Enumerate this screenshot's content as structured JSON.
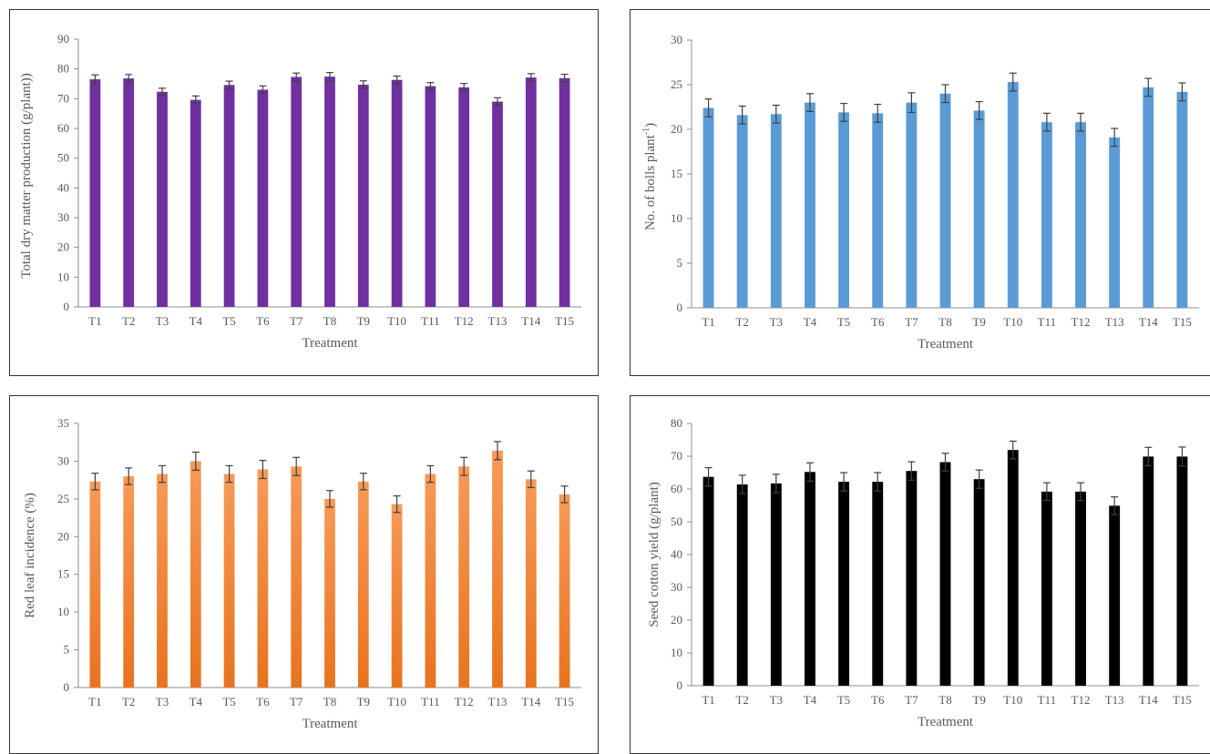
{
  "chart_data": [
    {
      "type": "bar",
      "categories": [
        "T1",
        "T2",
        "T3",
        "T4",
        "T5",
        "T6",
        "T7",
        "T8",
        "T9",
        "T10",
        "T11",
        "T12",
        "T13",
        "T14",
        "T15"
      ],
      "values": [
        76.5,
        76.8,
        72.3,
        69.6,
        74.6,
        73.0,
        77.3,
        77.4,
        74.7,
        76.3,
        74.2,
        73.8,
        69.0,
        77.1,
        76.9
      ],
      "errors": [
        1.5,
        1.3,
        1.2,
        1.3,
        1.3,
        1.3,
        1.3,
        1.4,
        1.3,
        1.3,
        1.2,
        1.3,
        1.3,
        1.3,
        1.3
      ],
      "yticks": [
        0,
        10,
        20,
        30,
        40,
        50,
        60,
        70,
        80,
        90
      ],
      "ylim": [
        0,
        90
      ],
      "xlabel": "Treatment",
      "ylabel": "Total dry matter production (g/plant))",
      "color": "#7030a0",
      "grid": false,
      "legend": "none"
    },
    {
      "type": "bar",
      "categories": [
        "T1",
        "T2",
        "T3",
        "T4",
        "T5",
        "T6",
        "T7",
        "T8",
        "T9",
        "T10",
        "T11",
        "T12",
        "T13",
        "T14",
        "T15"
      ],
      "values": [
        22.4,
        21.6,
        21.7,
        23.0,
        21.9,
        21.8,
        23.0,
        24.0,
        22.1,
        25.3,
        20.8,
        20.8,
        19.1,
        24.7,
        24.2
      ],
      "errors": [
        1.0,
        1.0,
        1.0,
        1.0,
        1.0,
        1.0,
        1.1,
        1.0,
        1.0,
        1.0,
        1.0,
        1.0,
        1.0,
        1.0,
        1.0
      ],
      "yticks": [
        0,
        5,
        10,
        15,
        20,
        25,
        30
      ],
      "ylim": [
        0,
        30
      ],
      "xlabel": "Treatment",
      "ylabel": "No. of bolls plant",
      "ylabel_sup": "-1",
      "ylabel_end": ")",
      "color": "#5b9bd5",
      "grid": false,
      "legend": "none"
    },
    {
      "type": "bar",
      "categories": [
        "T1",
        "T2",
        "T3",
        "T4",
        "T5",
        "T6",
        "T7",
        "T8",
        "T9",
        "T10",
        "T11",
        "T12",
        "T13",
        "T14",
        "T15"
      ],
      "values": [
        27.3,
        28.0,
        28.3,
        30.0,
        28.3,
        28.9,
        29.3,
        25.0,
        27.3,
        24.3,
        28.3,
        29.3,
        31.4,
        27.6,
        25.6
      ],
      "errors": [
        1.1,
        1.1,
        1.1,
        1.2,
        1.1,
        1.2,
        1.2,
        1.1,
        1.1,
        1.1,
        1.1,
        1.2,
        1.2,
        1.1,
        1.1
      ],
      "yticks": [
        0,
        5,
        10,
        15,
        20,
        25,
        30,
        35
      ],
      "ylim": [
        0,
        35
      ],
      "xlabel": "Treatment",
      "ylabel": "Red leaf incidence (%)",
      "color": "#ed7d31",
      "grid": false,
      "legend": "none"
    },
    {
      "type": "bar",
      "categories": [
        "T1",
        "T2",
        "T3",
        "T4",
        "T5",
        "T6",
        "T7",
        "T8",
        "T9",
        "T10",
        "T11",
        "T12",
        "T13",
        "T14",
        "T15"
      ],
      "values": [
        63.7,
        61.4,
        61.7,
        65.2,
        62.2,
        62.2,
        65.5,
        68.2,
        63.0,
        71.9,
        59.2,
        59.2,
        54.9,
        69.9,
        69.9
      ],
      "errors": [
        2.8,
        2.8,
        2.8,
        2.8,
        2.8,
        2.8,
        2.8,
        2.7,
        2.8,
        2.7,
        2.7,
        2.7,
        2.7,
        2.8,
        2.9
      ],
      "yticks": [
        0,
        10,
        20,
        30,
        40,
        50,
        60,
        70,
        80
      ],
      "ylim": [
        0,
        80
      ],
      "xlabel": "Treatment",
      "ylabel": "Seed cotton yield (g/plant)",
      "color": "#000000",
      "grid": false,
      "legend": "none"
    }
  ]
}
